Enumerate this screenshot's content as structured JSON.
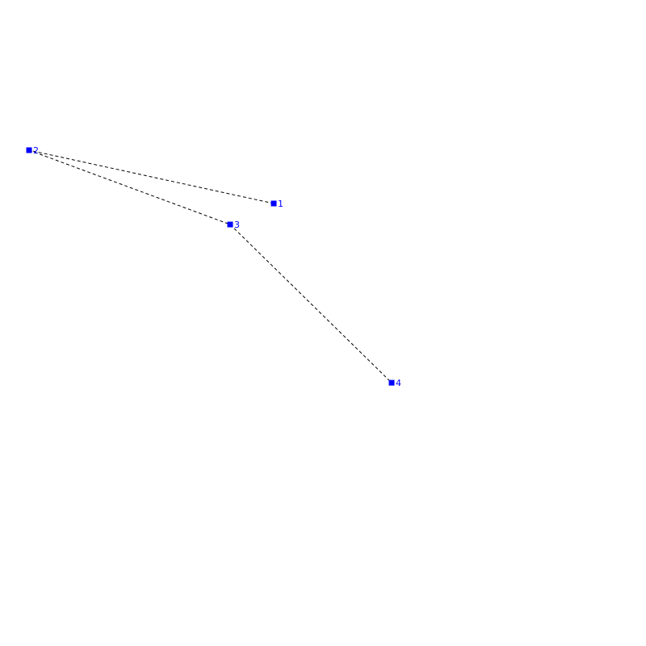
{
  "diagram": {
    "point_color": "#0000ff",
    "line_color": "#000000",
    "line_style": "dashed",
    "points": [
      {
        "label": "1"
      },
      {
        "label": "2"
      },
      {
        "label": "3"
      },
      {
        "label": "4"
      }
    ],
    "path_order": [
      "1",
      "2",
      "3",
      "4"
    ]
  }
}
